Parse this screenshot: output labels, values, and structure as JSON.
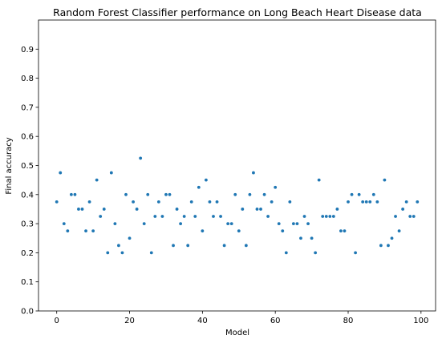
{
  "chart_data": {
    "type": "scatter",
    "title": "Random Forest Classifier performance on Long Beach Heart Disease data",
    "xlabel": "Model",
    "ylabel": "Final accuracy",
    "xlim": [
      -5,
      104
    ],
    "ylim": [
      0,
      1.0
    ],
    "xticks": [
      0,
      20,
      40,
      60,
      80,
      100
    ],
    "yticks": [
      0.0,
      0.1,
      0.2,
      0.3,
      0.4,
      0.5,
      0.6,
      0.7,
      0.8,
      0.9
    ],
    "marker_color": "#1f77b4",
    "grid": false,
    "series": [
      {
        "x": [
          0,
          1,
          2,
          3,
          4,
          5,
          6,
          7,
          8,
          9,
          10,
          11,
          12,
          13,
          14,
          15,
          16,
          17,
          18,
          19,
          20,
          21,
          22,
          23,
          24,
          25,
          26,
          27,
          28,
          29,
          30,
          31,
          32,
          33,
          34,
          35,
          36,
          37,
          38,
          39,
          40,
          41,
          42,
          43,
          44,
          45,
          46,
          47,
          48,
          49,
          50,
          51,
          52,
          53,
          54,
          55,
          56,
          57,
          58,
          59,
          60,
          61,
          62,
          63,
          64,
          65,
          66,
          67,
          68,
          69,
          70,
          71,
          72,
          73,
          74,
          75,
          76,
          77,
          78,
          79,
          80,
          81,
          82,
          83,
          84,
          85,
          86,
          87,
          88,
          89,
          90,
          91,
          92,
          93,
          94,
          95,
          96,
          97,
          98,
          99
        ],
        "y": [
          0.375,
          0.475,
          0.3,
          0.275,
          0.4,
          0.4,
          0.35,
          0.35,
          0.275,
          0.375,
          0.275,
          0.45,
          0.325,
          0.35,
          0.2,
          0.475,
          0.3,
          0.225,
          0.2,
          0.4,
          0.25,
          0.375,
          0.35,
          0.525,
          0.3,
          0.4,
          0.2,
          0.325,
          0.375,
          0.325,
          0.4,
          0.4,
          0.225,
          0.35,
          0.3,
          0.325,
          0.225,
          0.375,
          0.325,
          0.425,
          0.275,
          0.45,
          0.375,
          0.325,
          0.375,
          0.325,
          0.225,
          0.3,
          0.3,
          0.4,
          0.275,
          0.35,
          0.225,
          0.4,
          0.475,
          0.35,
          0.35,
          0.4,
          0.325,
          0.375,
          0.425,
          0.3,
          0.275,
          0.2,
          0.375,
          0.3,
          0.3,
          0.25,
          0.325,
          0.3,
          0.25,
          0.2,
          0.45,
          0.325,
          0.325,
          0.325,
          0.325,
          0.35,
          0.275,
          0.275,
          0.375,
          0.4,
          0.2,
          0.4,
          0.375,
          0.375,
          0.375,
          0.4,
          0.375,
          0.225,
          0.45,
          0.225,
          0.25,
          0.325,
          0.275,
          0.35,
          0.375,
          0.325,
          0.325,
          0.375
        ]
      }
    ]
  }
}
